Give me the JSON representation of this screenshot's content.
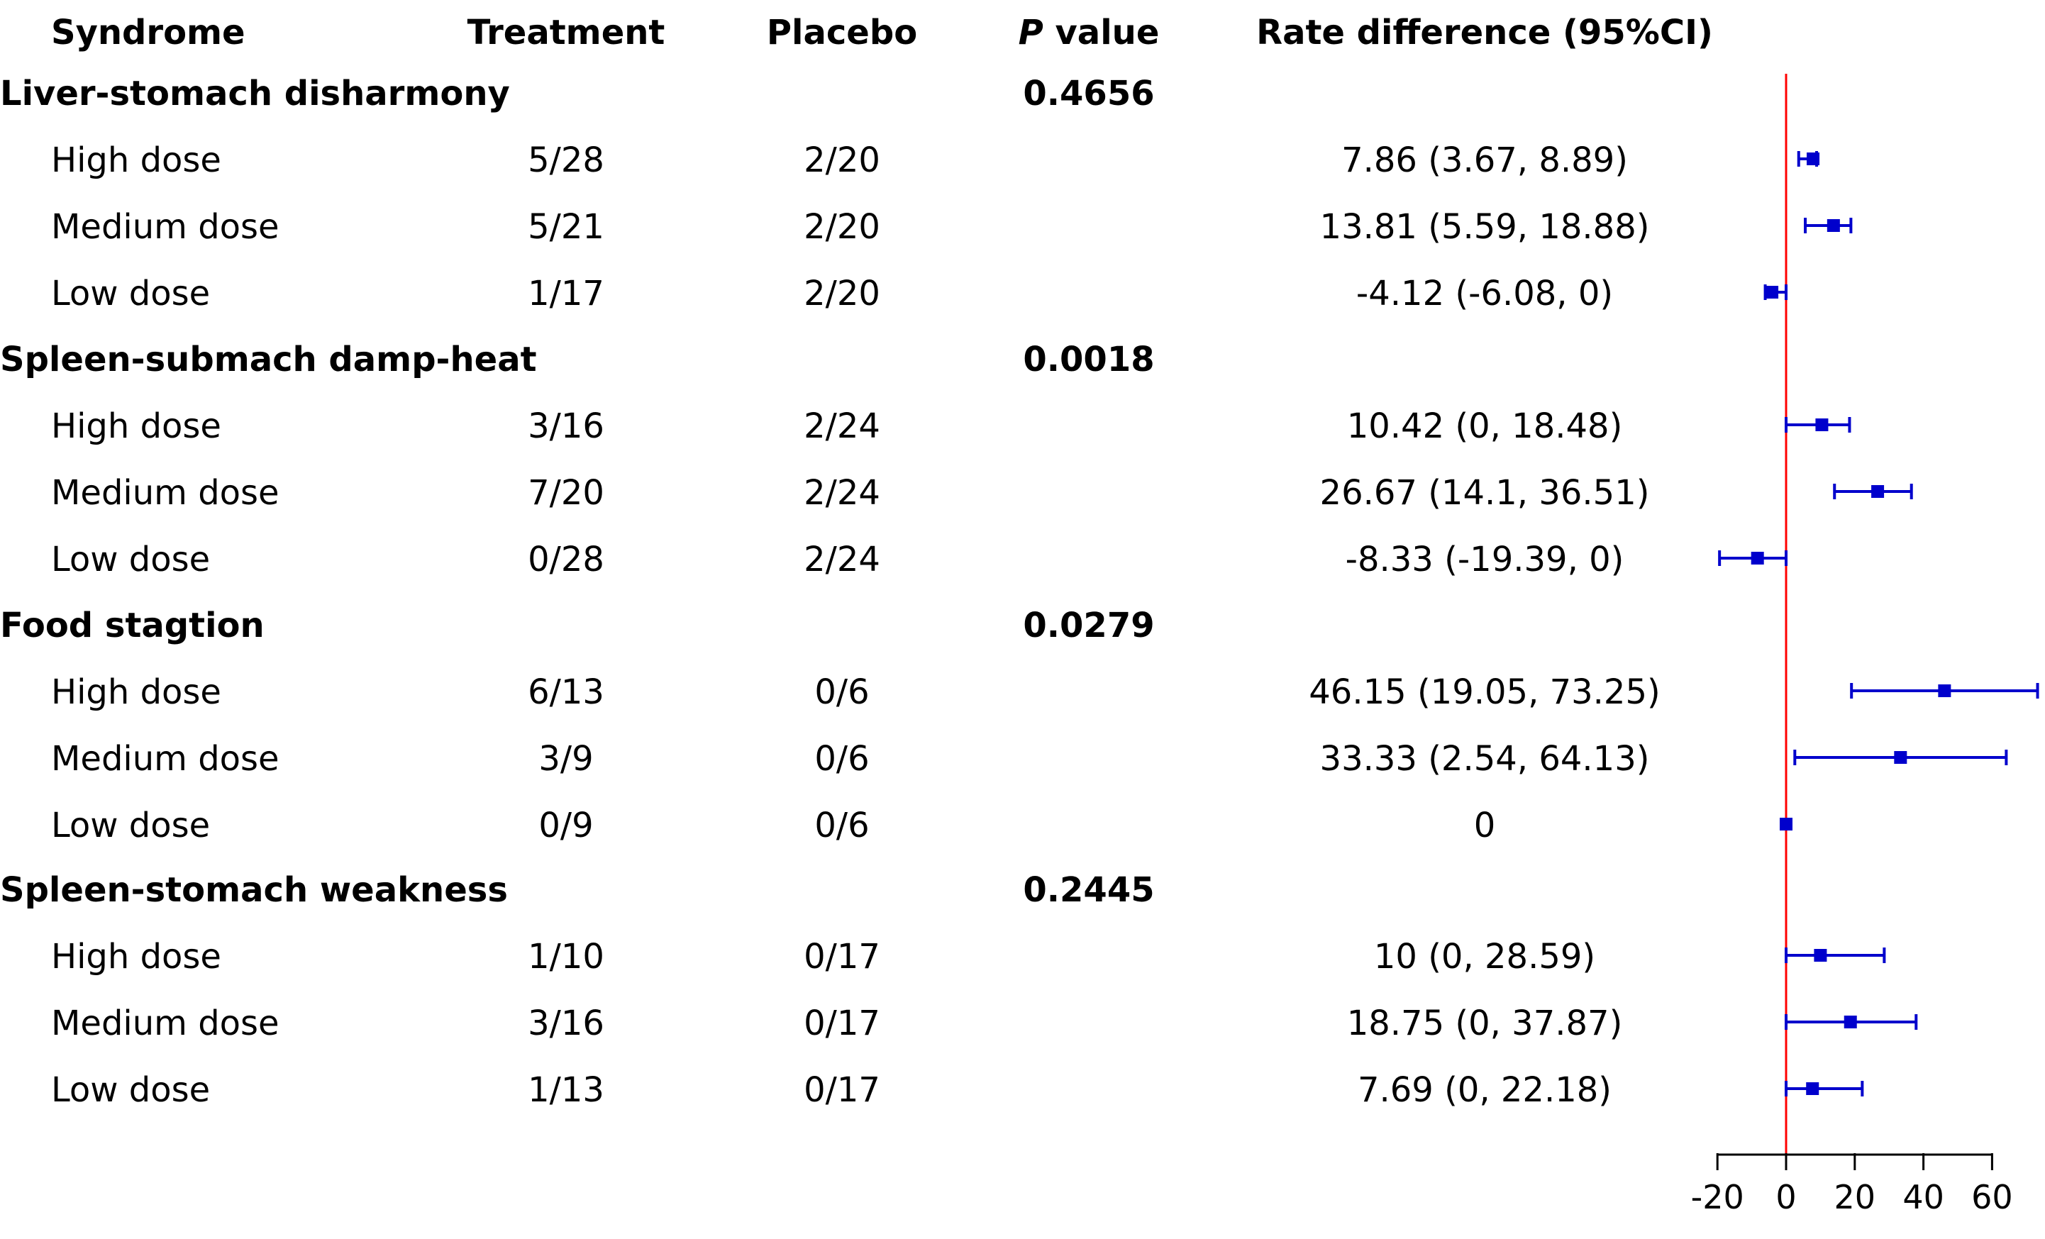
{
  "headers": {
    "syndrome": "Syndrome",
    "treatment": "Treatment",
    "placebo": "Placebo",
    "p_italic": "P",
    "p_rest": " value",
    "rate_diff": "Rate difference (95%CI)"
  },
  "groups": [
    {
      "name": "Liver-stomach disharmony",
      "p_value": "0.4656",
      "rows": [
        {
          "dose": "High dose",
          "treatment": "5/28",
          "placebo": "2/20",
          "rd_text": "7.86 (3.67, 8.89)"
        },
        {
          "dose": "Medium dose",
          "treatment": "5/21",
          "placebo": "2/20",
          "rd_text": "13.81 (5.59, 18.88)"
        },
        {
          "dose": "Low dose",
          "treatment": "1/17",
          "placebo": "2/20",
          "rd_text": "-4.12 (-6.08, 0)"
        }
      ]
    },
    {
      "name": "Spleen-submach damp-heat",
      "p_value": "0.0018",
      "rows": [
        {
          "dose": "High dose",
          "treatment": "3/16",
          "placebo": "2/24",
          "rd_text": "10.42 (0, 18.48)"
        },
        {
          "dose": "Medium dose",
          "treatment": "7/20",
          "placebo": "2/24",
          "rd_text": "26.67 (14.1, 36.51)"
        },
        {
          "dose": "Low dose",
          "treatment": "0/28",
          "placebo": "2/24",
          "rd_text": "-8.33 (-19.39, 0)"
        }
      ]
    },
    {
      "name": "Food stagtion",
      "p_value": "0.0279",
      "rows": [
        {
          "dose": "High dose",
          "treatment": "6/13",
          "placebo": "0/6",
          "rd_text": "46.15 (19.05, 73.25)"
        },
        {
          "dose": "Medium dose",
          "treatment": "3/9",
          "placebo": "0/6",
          "rd_text": "33.33 (2.54, 64.13)"
        },
        {
          "dose": "Low dose",
          "treatment": "0/9",
          "placebo": "0/6",
          "rd_text": "0"
        }
      ]
    },
    {
      "name": "Spleen-stomach weakness",
      "p_value": "0.2445",
      "rows": [
        {
          "dose": "High dose",
          "treatment": "1/10",
          "placebo": "0/17",
          "rd_text": "10 (0, 28.59)"
        },
        {
          "dose": "Medium dose",
          "treatment": "3/16",
          "placebo": "0/17",
          "rd_text": "18.75 (0, 37.87)"
        },
        {
          "dose": "Low dose",
          "treatment": "1/13",
          "placebo": "0/17",
          "rd_text": "7.69 (0, 22.18)"
        }
      ]
    }
  ],
  "chart_data": {
    "type": "forest",
    "xlabel": "",
    "x_ticks": [
      -20,
      0,
      20,
      40,
      60
    ],
    "xlim": [
      -20,
      60
    ],
    "reference_line": 0,
    "colors": {
      "points": "#0000CC",
      "reference": "#FF0000",
      "axis": "#000000"
    },
    "points": [
      {
        "estimate": 7.86,
        "lower": 3.67,
        "upper": 8.89
      },
      {
        "estimate": 13.81,
        "lower": 5.59,
        "upper": 18.88
      },
      {
        "estimate": -4.12,
        "lower": -6.08,
        "upper": 0
      },
      {
        "estimate": 10.42,
        "lower": 0,
        "upper": 18.48
      },
      {
        "estimate": 26.67,
        "lower": 14.1,
        "upper": 36.51
      },
      {
        "estimate": -8.33,
        "lower": -19.39,
        "upper": 0
      },
      {
        "estimate": 46.15,
        "lower": 19.05,
        "upper": 73.25
      },
      {
        "estimate": 33.33,
        "lower": 2.54,
        "upper": 64.13
      },
      {
        "estimate": 0,
        "lower": 0,
        "upper": 0
      },
      {
        "estimate": 10,
        "lower": 0,
        "upper": 28.59
      },
      {
        "estimate": 18.75,
        "lower": 0,
        "upper": 37.87
      },
      {
        "estimate": 7.69,
        "lower": 0,
        "upper": 22.18
      }
    ]
  }
}
